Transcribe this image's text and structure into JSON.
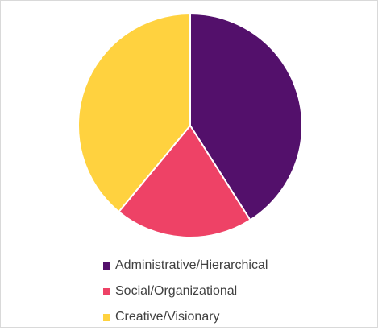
{
  "chart_data": {
    "type": "pie",
    "title": "",
    "categories": [
      "Administrative/Hierarchical",
      "Social/Organizational",
      "Creative/Visionary"
    ],
    "values": [
      41,
      20,
      39
    ],
    "colors": [
      "#53106B",
      "#EE4266",
      "#FFD23F"
    ],
    "legend_position": "bottom",
    "start_angle_deg": 0,
    "direction": "clockwise"
  },
  "legend": {
    "items": [
      {
        "label": "Administrative/Hierarchical",
        "color": "#53106B"
      },
      {
        "label": "Social/Organizational",
        "color": "#EE4266"
      },
      {
        "label": "Creative/Visionary",
        "color": "#FFD23F"
      }
    ]
  }
}
